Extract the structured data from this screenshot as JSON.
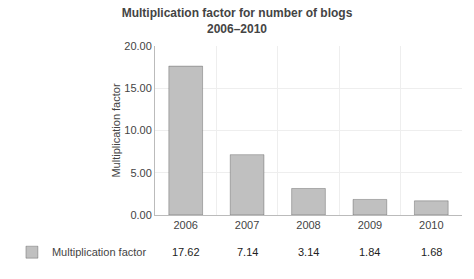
{
  "chart_data": {
    "type": "bar",
    "title": "Multiplication factor for number of blogs",
    "subtitle": "2006–2010",
    "ylabel": "Multiplication factor",
    "categories": [
      "2006",
      "2007",
      "2008",
      "2009",
      "2010"
    ],
    "series": [
      {
        "name": "Multiplication factor",
        "color": "#c0c0c0",
        "values": [
          17.62,
          7.14,
          3.14,
          1.84,
          1.68
        ]
      }
    ],
    "ylim": [
      0,
      20
    ],
    "yticks": [
      {
        "value": 0,
        "label": "0.00"
      },
      {
        "value": 5,
        "label": "5.00"
      },
      {
        "value": 10,
        "label": "10.00"
      },
      {
        "value": 15,
        "label": "15.00"
      },
      {
        "value": 20,
        "label": "20.00"
      }
    ],
    "grid": true,
    "legend": "bottom left",
    "data_labels": true
  }
}
